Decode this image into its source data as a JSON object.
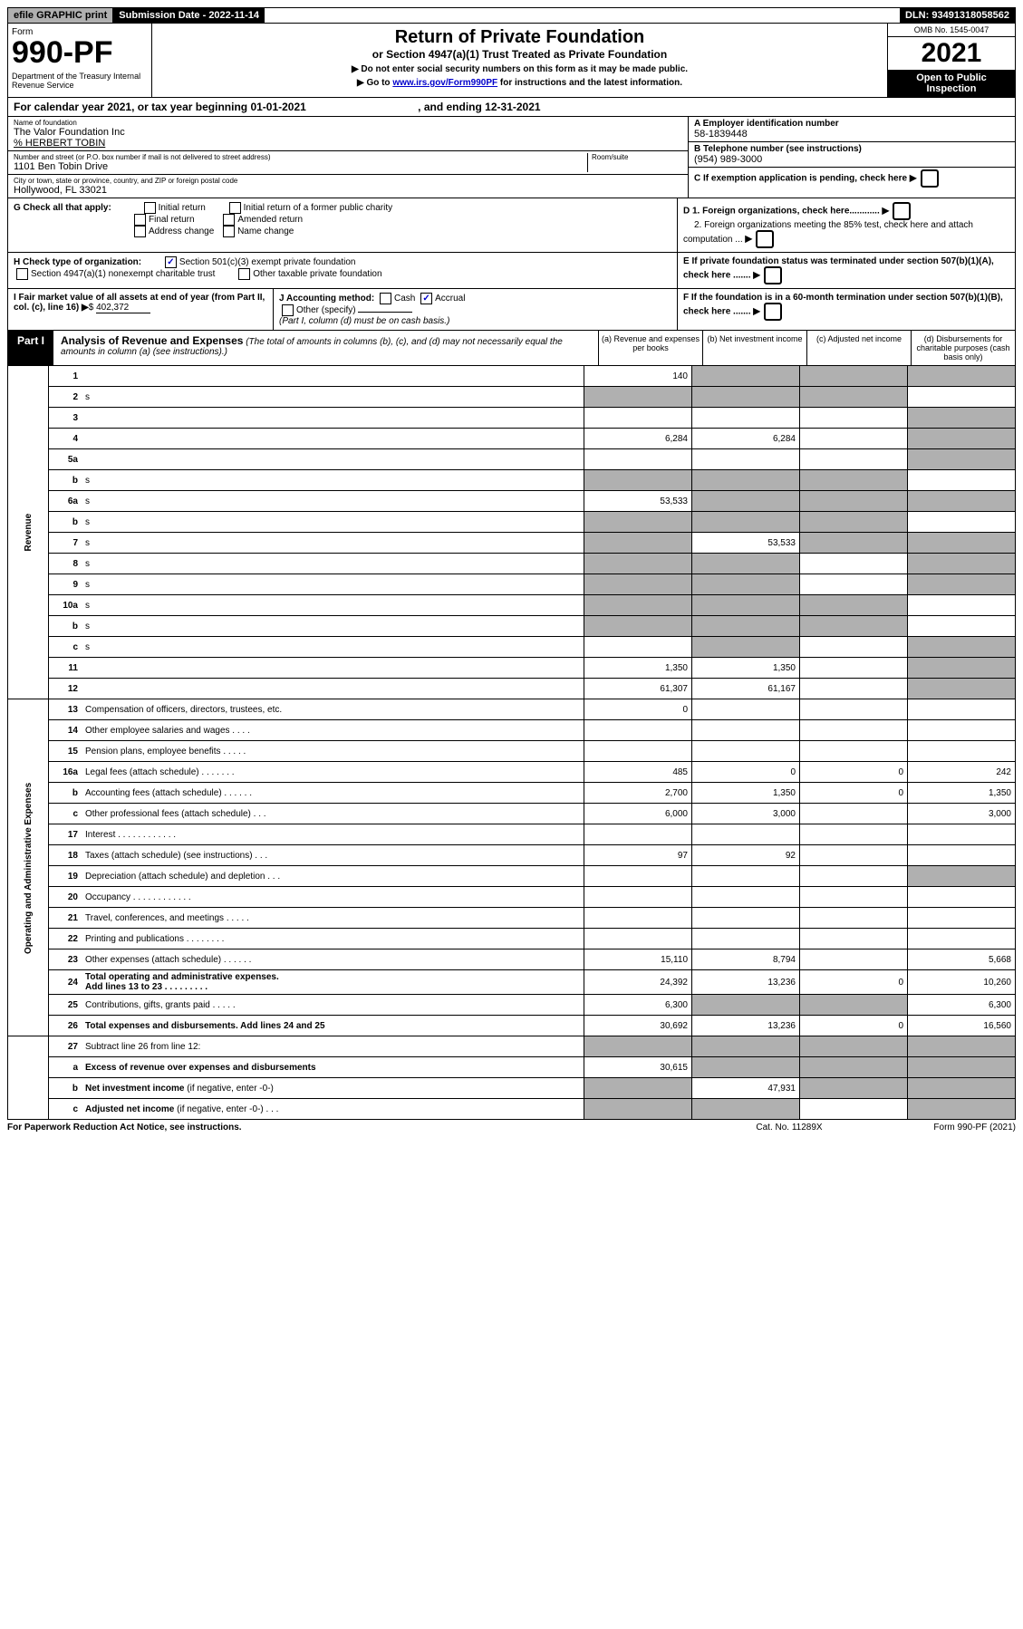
{
  "topbar": {
    "efile": "efile GRAPHIC print",
    "submission_label": "Submission Date - 2022-11-14",
    "dln": "DLN: 93491318058562"
  },
  "header": {
    "form_word": "Form",
    "form_no": "990-PF",
    "dept": "Department of the Treasury\nInternal Revenue Service",
    "title": "Return of Private Foundation",
    "subtitle": "or Section 4947(a)(1) Trust Treated as Private Foundation",
    "instr1": "▶ Do not enter social security numbers on this form as it may be made public.",
    "instr2_pre": "▶ Go to ",
    "instr2_link": "www.irs.gov/Form990PF",
    "instr2_post": " for instructions and the latest information.",
    "omb": "OMB No. 1545-0047",
    "year": "2021",
    "open_public": "Open to Public Inspection"
  },
  "calendar": {
    "text_pre": "For calendar year 2021, or tax year beginning 01-01-2021",
    "text_mid": ", and ending 12-31-2021"
  },
  "entity": {
    "name_label": "Name of foundation",
    "name": "The Valor Foundation Inc",
    "care_of": "% HERBERT TOBIN",
    "addr_label": "Number and street (or P.O. box number if mail is not delivered to street address)",
    "addr": "1101 Ben Tobin Drive",
    "room_label": "Room/suite",
    "city_label": "City or town, state or province, country, and ZIP or foreign postal code",
    "city": "Hollywood, FL  33021",
    "ein_label": "A Employer identification number",
    "ein": "58-1839448",
    "phone_label": "B Telephone number (see instructions)",
    "phone": "(954) 989-3000",
    "c_label": "C If exemption application is pending, check here"
  },
  "checks": {
    "g_label": "G Check all that apply:",
    "g_opts": [
      "Initial return",
      "Initial return of a former public charity",
      "Final return",
      "Amended return",
      "Address change",
      "Name change"
    ],
    "h_label": "H Check type of organization:",
    "h_opt1": "Section 501(c)(3) exempt private foundation",
    "h_opt2": "Section 4947(a)(1) nonexempt charitable trust",
    "h_opt3": "Other taxable private foundation",
    "d1": "D 1. Foreign organizations, check here............",
    "d2": "2. Foreign organizations meeting the 85% test, check here and attach computation ...",
    "e": "E  If private foundation status was terminated under section 507(b)(1)(A), check here .......",
    "i_label": "I Fair market value of all assets at end of year (from Part II, col. (c), line 16)",
    "i_val": "402,372",
    "j_label": "J Accounting method:",
    "j_cash": "Cash",
    "j_accrual": "Accrual",
    "j_other": "Other (specify)",
    "j_note": "(Part I, column (d) must be on cash basis.)",
    "f": "F  If the foundation is in a 60-month termination under section 507(b)(1)(B), check here ......."
  },
  "part1": {
    "label": "Part I",
    "title": "Analysis of Revenue and Expenses",
    "note": "(The total of amounts in columns (b), (c), and (d) may not necessarily equal the amounts in column (a) (see instructions).)",
    "col_a": "(a)   Revenue and expenses per books",
    "col_b": "(b)   Net investment income",
    "col_c": "(c)   Adjusted net income",
    "col_d": "(d)  Disbursements for charitable purposes (cash basis only)"
  },
  "vert": {
    "revenue": "Revenue",
    "expenses": "Operating and Administrative Expenses"
  },
  "rows": [
    {
      "n": "1",
      "d": "",
      "a": "140",
      "b": "",
      "c": "",
      "sb": true,
      "sc": true,
      "sd": true
    },
    {
      "n": "2",
      "d": "s",
      "a": "s",
      "b": "s",
      "c": "s"
    },
    {
      "n": "3",
      "d": "",
      "a": "",
      "b": "",
      "c": "",
      "sd": true
    },
    {
      "n": "4",
      "d": "",
      "a": "6,284",
      "b": "6,284",
      "c": "",
      "sd": true
    },
    {
      "n": "5a",
      "d": "",
      "a": "",
      "b": "",
      "c": "",
      "sd": true
    },
    {
      "n": "b",
      "d": "s",
      "a": "s",
      "b": "s",
      "c": "s"
    },
    {
      "n": "6a",
      "d": "s",
      "a": "53,533",
      "b": "s",
      "c": "s",
      "sb": true,
      "sc": true,
      "sd": true
    },
    {
      "n": "b",
      "d": "s",
      "a": "s",
      "b": "s",
      "c": "s"
    },
    {
      "n": "7",
      "d": "s",
      "a": "s",
      "b": "53,533",
      "c": "s",
      "sa": true,
      "sc": true,
      "sd": true
    },
    {
      "n": "8",
      "d": "s",
      "a": "s",
      "b": "s",
      "c": "",
      "sa": true,
      "sb": true,
      "sd": true
    },
    {
      "n": "9",
      "d": "s",
      "a": "s",
      "b": "s",
      "c": "",
      "sa": true,
      "sb": true,
      "sd": true
    },
    {
      "n": "10a",
      "d": "s",
      "a": "s",
      "b": "s",
      "c": "s"
    },
    {
      "n": "b",
      "d": "s",
      "a": "s",
      "b": "s",
      "c": "s"
    },
    {
      "n": "c",
      "d": "s",
      "a": "",
      "b": "s",
      "c": "",
      "sb": true,
      "sd": true
    },
    {
      "n": "11",
      "d": "",
      "a": "1,350",
      "b": "1,350",
      "c": "",
      "sd": true
    },
    {
      "n": "12",
      "d": "",
      "a": "61,307",
      "b": "61,167",
      "c": "",
      "bold": true,
      "sd": true
    }
  ],
  "exp_rows": [
    {
      "n": "13",
      "d": "",
      "a": "0",
      "b": "",
      "c": ""
    },
    {
      "n": "14",
      "d": "",
      "a": "",
      "b": "",
      "c": ""
    },
    {
      "n": "15",
      "d": "",
      "a": "",
      "b": "",
      "c": ""
    },
    {
      "n": "16a",
      "d": "242",
      "a": "485",
      "b": "0",
      "c": "0"
    },
    {
      "n": "b",
      "d": "1,350",
      "a": "2,700",
      "b": "1,350",
      "c": "0"
    },
    {
      "n": "c",
      "d": "3,000",
      "a": "6,000",
      "b": "3,000",
      "c": ""
    },
    {
      "n": "17",
      "d": "",
      "a": "",
      "b": "",
      "c": ""
    },
    {
      "n": "18",
      "d": "",
      "a": "97",
      "b": "92",
      "c": ""
    },
    {
      "n": "19",
      "d": "",
      "a": "",
      "b": "",
      "c": "",
      "sd": true
    },
    {
      "n": "20",
      "d": "",
      "a": "",
      "b": "",
      "c": ""
    },
    {
      "n": "21",
      "d": "",
      "a": "",
      "b": "",
      "c": ""
    },
    {
      "n": "22",
      "d": "",
      "a": "",
      "b": "",
      "c": ""
    },
    {
      "n": "23",
      "d": "5,668",
      "a": "15,110",
      "b": "8,794",
      "c": ""
    },
    {
      "n": "24",
      "d": "10,260",
      "a": "24,392",
      "b": "13,236",
      "c": "0",
      "bold": true
    },
    {
      "n": "25",
      "d": "6,300",
      "a": "6,300",
      "b": "s",
      "c": "s",
      "sb": true,
      "sc": true
    },
    {
      "n": "26",
      "d": "16,560",
      "a": "30,692",
      "b": "13,236",
      "c": "0",
      "bold": true
    }
  ],
  "final_rows": [
    {
      "n": "27",
      "d": "s",
      "a": "s",
      "b": "s",
      "c": "s"
    },
    {
      "n": "a",
      "d": "s",
      "a": "30,615",
      "b": "s",
      "c": "s",
      "bold": true,
      "sb": true,
      "sc": true,
      "sd": true
    },
    {
      "n": "b",
      "d": "s",
      "a": "s",
      "b": "47,931",
      "c": "s",
      "bold": true,
      "sa": true,
      "sc": true,
      "sd": true
    },
    {
      "n": "c",
      "d": "s",
      "a": "s",
      "b": "s",
      "c": "",
      "bold": true,
      "sa": true,
      "sb": true,
      "sd": true
    }
  ],
  "footer": {
    "left": "For Paperwork Reduction Act Notice, see instructions.",
    "center": "Cat. No. 11289X",
    "right": "Form 990-PF (2021)"
  }
}
